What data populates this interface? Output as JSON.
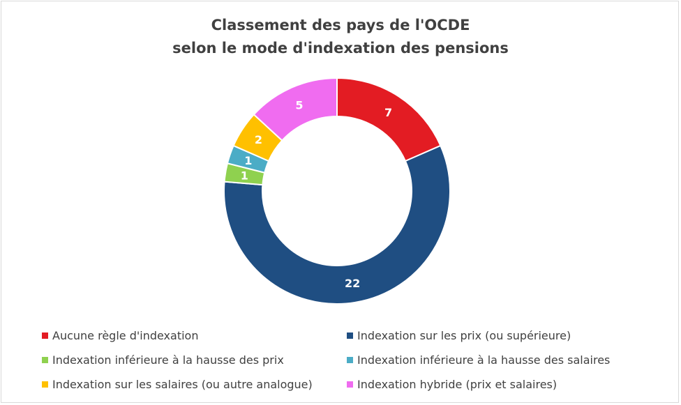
{
  "chart_data": {
    "type": "pie",
    "donut": true,
    "title": [
      "Classement des pays de l'OCDE",
      "selon le mode d'indexation des pensions"
    ],
    "slices": [
      {
        "label": "Aucune règle d'indexation",
        "value": 7,
        "color": "#e31c23"
      },
      {
        "label": "Indexation sur les prix (ou supérieure)",
        "value": 22,
        "color": "#1f4e82"
      },
      {
        "label": "Indexation inférieure à la hausse des prix",
        "value": 1,
        "color": "#8fd14f"
      },
      {
        "label": "Indexation inférieure à la hausse des salaires",
        "value": 1,
        "color": "#4bacc6"
      },
      {
        "label": "Indexation sur les salaires (ou autre analogue)",
        "value": 2,
        "color": "#ffc000"
      },
      {
        "label": "Indexation hybride (prix et salaires)",
        "value": 5,
        "color": "#f06cf0"
      }
    ],
    "legend_position": "bottom"
  }
}
